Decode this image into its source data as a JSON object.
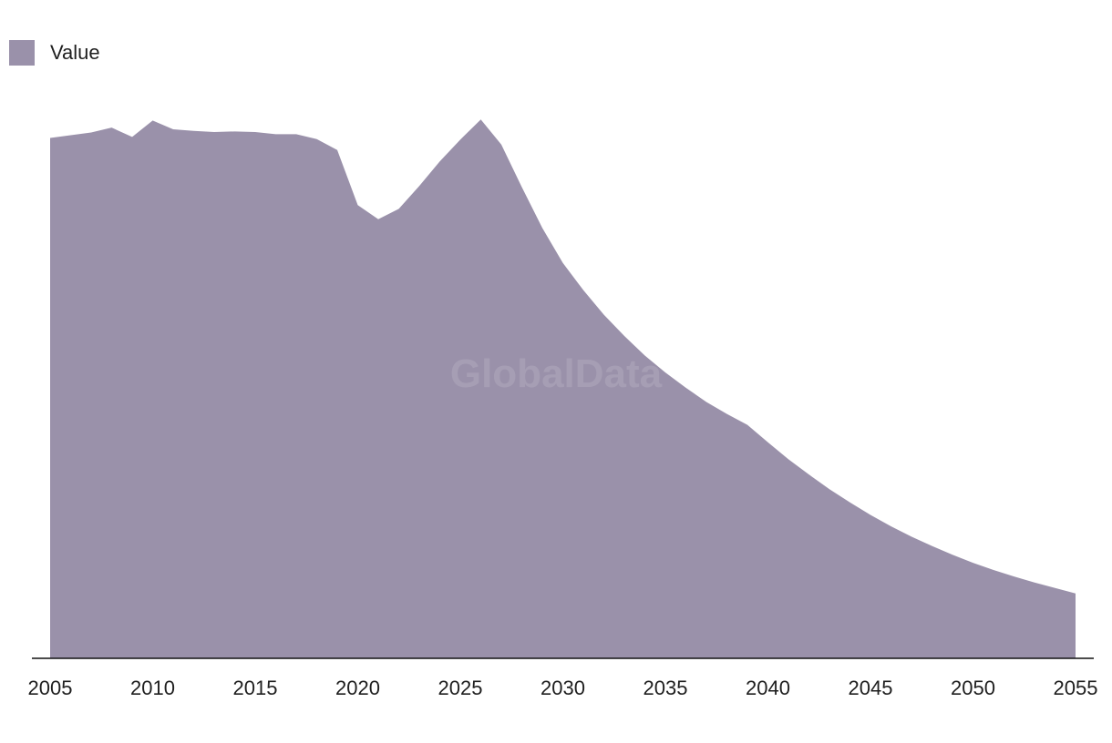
{
  "legend": {
    "label": "Value"
  },
  "watermark": "GlobalData",
  "colors": {
    "area": "#9a91aa",
    "axis": "#111111",
    "text": "#1f1f1f"
  },
  "chart_data": {
    "type": "area",
    "title": "",
    "xlabel": "",
    "ylabel": "",
    "xlim": [
      2005,
      2055
    ],
    "ylim": [
      0,
      100
    ],
    "grid": false,
    "legend_position": "top-left",
    "x_ticks": [
      2005,
      2010,
      2015,
      2020,
      2025,
      2030,
      2035,
      2040,
      2045,
      2050,
      2055
    ],
    "series": [
      {
        "name": "Value",
        "x": [
          2005,
          2006,
          2007,
          2008,
          2009,
          2010,
          2011,
          2012,
          2013,
          2014,
          2015,
          2016,
          2017,
          2018,
          2019,
          2020,
          2021,
          2022,
          2023,
          2024,
          2025,
          2026,
          2027,
          2028,
          2029,
          2030,
          2031,
          2032,
          2033,
          2034,
          2035,
          2036,
          2037,
          2038,
          2039,
          2040,
          2041,
          2042,
          2043,
          2044,
          2045,
          2046,
          2047,
          2048,
          2049,
          2050,
          2051,
          2052,
          2053,
          2054,
          2055
        ],
        "values": [
          95.4,
          95.9,
          96.4,
          97.3,
          95.6,
          98.6,
          97.0,
          96.7,
          96.5,
          96.6,
          96.5,
          96.1,
          96.1,
          95.2,
          93.2,
          83.1,
          80.5,
          82.4,
          86.6,
          91.1,
          95.1,
          98.8,
          94.2,
          86.4,
          78.9,
          72.5,
          67.5,
          63.0,
          59.1,
          55.5,
          52.4,
          49.6,
          47.0,
          44.8,
          42.8,
          39.6,
          36.5,
          33.7,
          31.0,
          28.6,
          26.3,
          24.2,
          22.3,
          20.6,
          19.0,
          17.5,
          16.2,
          15.0,
          13.9,
          12.9,
          11.9
        ]
      }
    ]
  }
}
